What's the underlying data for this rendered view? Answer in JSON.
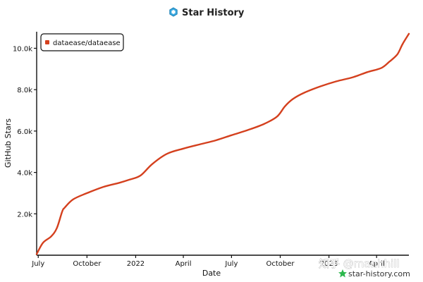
{
  "chart_data": {
    "type": "line",
    "title": "Star History",
    "xlabel": "Date",
    "ylabel": "GitHub Stars",
    "x_ticks": [
      "July",
      "October",
      "2022",
      "April",
      "July",
      "October",
      "2023",
      "April"
    ],
    "y_ticks": [
      "2.0k",
      "4.0k",
      "6.0k",
      "8.0k",
      "10.0k"
    ],
    "ylim": [
      0,
      10800
    ],
    "xlim": [
      "2021-06-28",
      "2023-06-01"
    ],
    "legend_position": "top-left",
    "grid": false,
    "series": [
      {
        "name": "dataease/dataease",
        "color": "#d4401e",
        "x": [
          "2021-06-28",
          "2021-07-10",
          "2021-07-25",
          "2021-08-05",
          "2021-08-15",
          "2021-08-20",
          "2021-09-05",
          "2021-10-01",
          "2021-11-01",
          "2021-12-01",
          "2021-12-20",
          "2022-01-10",
          "2022-02-01",
          "2022-03-01",
          "2022-04-01",
          "2022-05-01",
          "2022-06-01",
          "2022-07-01",
          "2022-08-01",
          "2022-09-01",
          "2022-09-25",
          "2022-10-10",
          "2022-10-25",
          "2022-11-15",
          "2022-12-15",
          "2023-01-15",
          "2023-02-15",
          "2023-03-15",
          "2023-04-10",
          "2023-04-25",
          "2023-05-10",
          "2023-05-20",
          "2023-06-01"
        ],
        "y": [
          50,
          600,
          900,
          1300,
          2100,
          2300,
          2700,
          3000,
          3300,
          3500,
          3650,
          3850,
          4400,
          4900,
          5150,
          5350,
          5550,
          5800,
          6050,
          6350,
          6700,
          7200,
          7550,
          7850,
          8150,
          8400,
          8600,
          8850,
          9050,
          9350,
          9700,
          10200,
          10700
        ]
      }
    ]
  },
  "watermark": {
    "site": "star-history.com",
    "overlay": "知乎 @manhhill"
  },
  "icons": {
    "title_icon": "hexagon-icon",
    "watermark_icon": "star-icon"
  }
}
